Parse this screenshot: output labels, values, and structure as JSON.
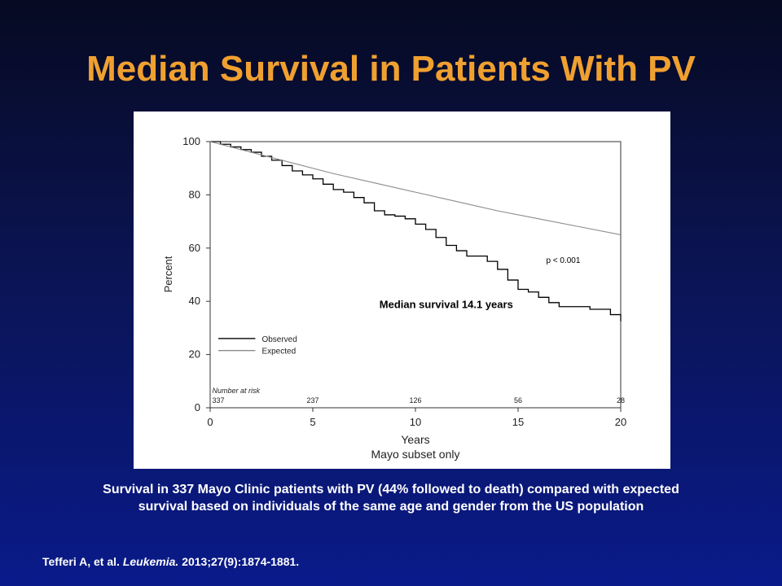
{
  "slide": {
    "title": "Median Survival in Patients With PV",
    "caption_line1": "Survival in 337 Mayo Clinic patients with PV (44% followed to death) compared with expected",
    "caption_line2": "survival based on individuals of the same age and gender from the US population",
    "citation_authors": "Tefferi A, et al.",
    "citation_journal": "Leukemia.",
    "citation_details": "2013;27(9):1874-1881."
  },
  "chart_data": {
    "type": "line",
    "title": "",
    "xlabel": "Years",
    "xlabel_sub": "Mayo subset only",
    "ylabel": "Percent",
    "xlim": [
      0,
      20
    ],
    "ylim": [
      0,
      100
    ],
    "xticks": [
      0,
      5,
      10,
      15,
      20
    ],
    "yticks": [
      0,
      20,
      40,
      60,
      80,
      100
    ],
    "grid": false,
    "legend_position": "lower-left",
    "series": [
      {
        "name": "Observed",
        "step": true,
        "color": "#000000",
        "x": [
          0,
          0.5,
          1,
          1.5,
          2,
          2.5,
          3,
          3.5,
          4,
          4.5,
          5,
          5.5,
          6,
          6.5,
          7,
          7.5,
          8,
          8.5,
          9,
          9.5,
          10,
          10.5,
          11,
          11.5,
          12,
          12.5,
          13,
          13.5,
          14,
          14.5,
          15,
          15.5,
          16,
          16.5,
          17,
          17.5,
          18,
          18.5,
          19,
          19.5,
          20
        ],
        "y": [
          100,
          99,
          98,
          97,
          96,
          94.5,
          93,
          91,
          89,
          87.5,
          86,
          84,
          82,
          81,
          79,
          77,
          74,
          72.5,
          72,
          71,
          69,
          67,
          64,
          61,
          59,
          57,
          57,
          55,
          52,
          48,
          44.5,
          43.5,
          41.5,
          39.5,
          38,
          38,
          38,
          37,
          37,
          35,
          32.5
        ]
      },
      {
        "name": "Expected",
        "step": false,
        "color": "#8c8c8c",
        "x": [
          0,
          2,
          4,
          6,
          8,
          10,
          12,
          14,
          16,
          18,
          20
        ],
        "y": [
          100,
          96,
          92,
          88,
          84.5,
          81,
          77.5,
          74,
          71,
          68,
          65
        ]
      }
    ],
    "annotations": [
      {
        "text": "Median survival 14.1 years",
        "x": 11.5,
        "y": 37.5
      },
      {
        "text": "p < 0.001",
        "x": 17.2,
        "y": 54.5
      }
    ],
    "risk_table": {
      "label": "Number at risk",
      "years": [
        0,
        5,
        10,
        15,
        20
      ],
      "counts": [
        "337",
        "237",
        "126",
        "56",
        "28"
      ]
    }
  }
}
